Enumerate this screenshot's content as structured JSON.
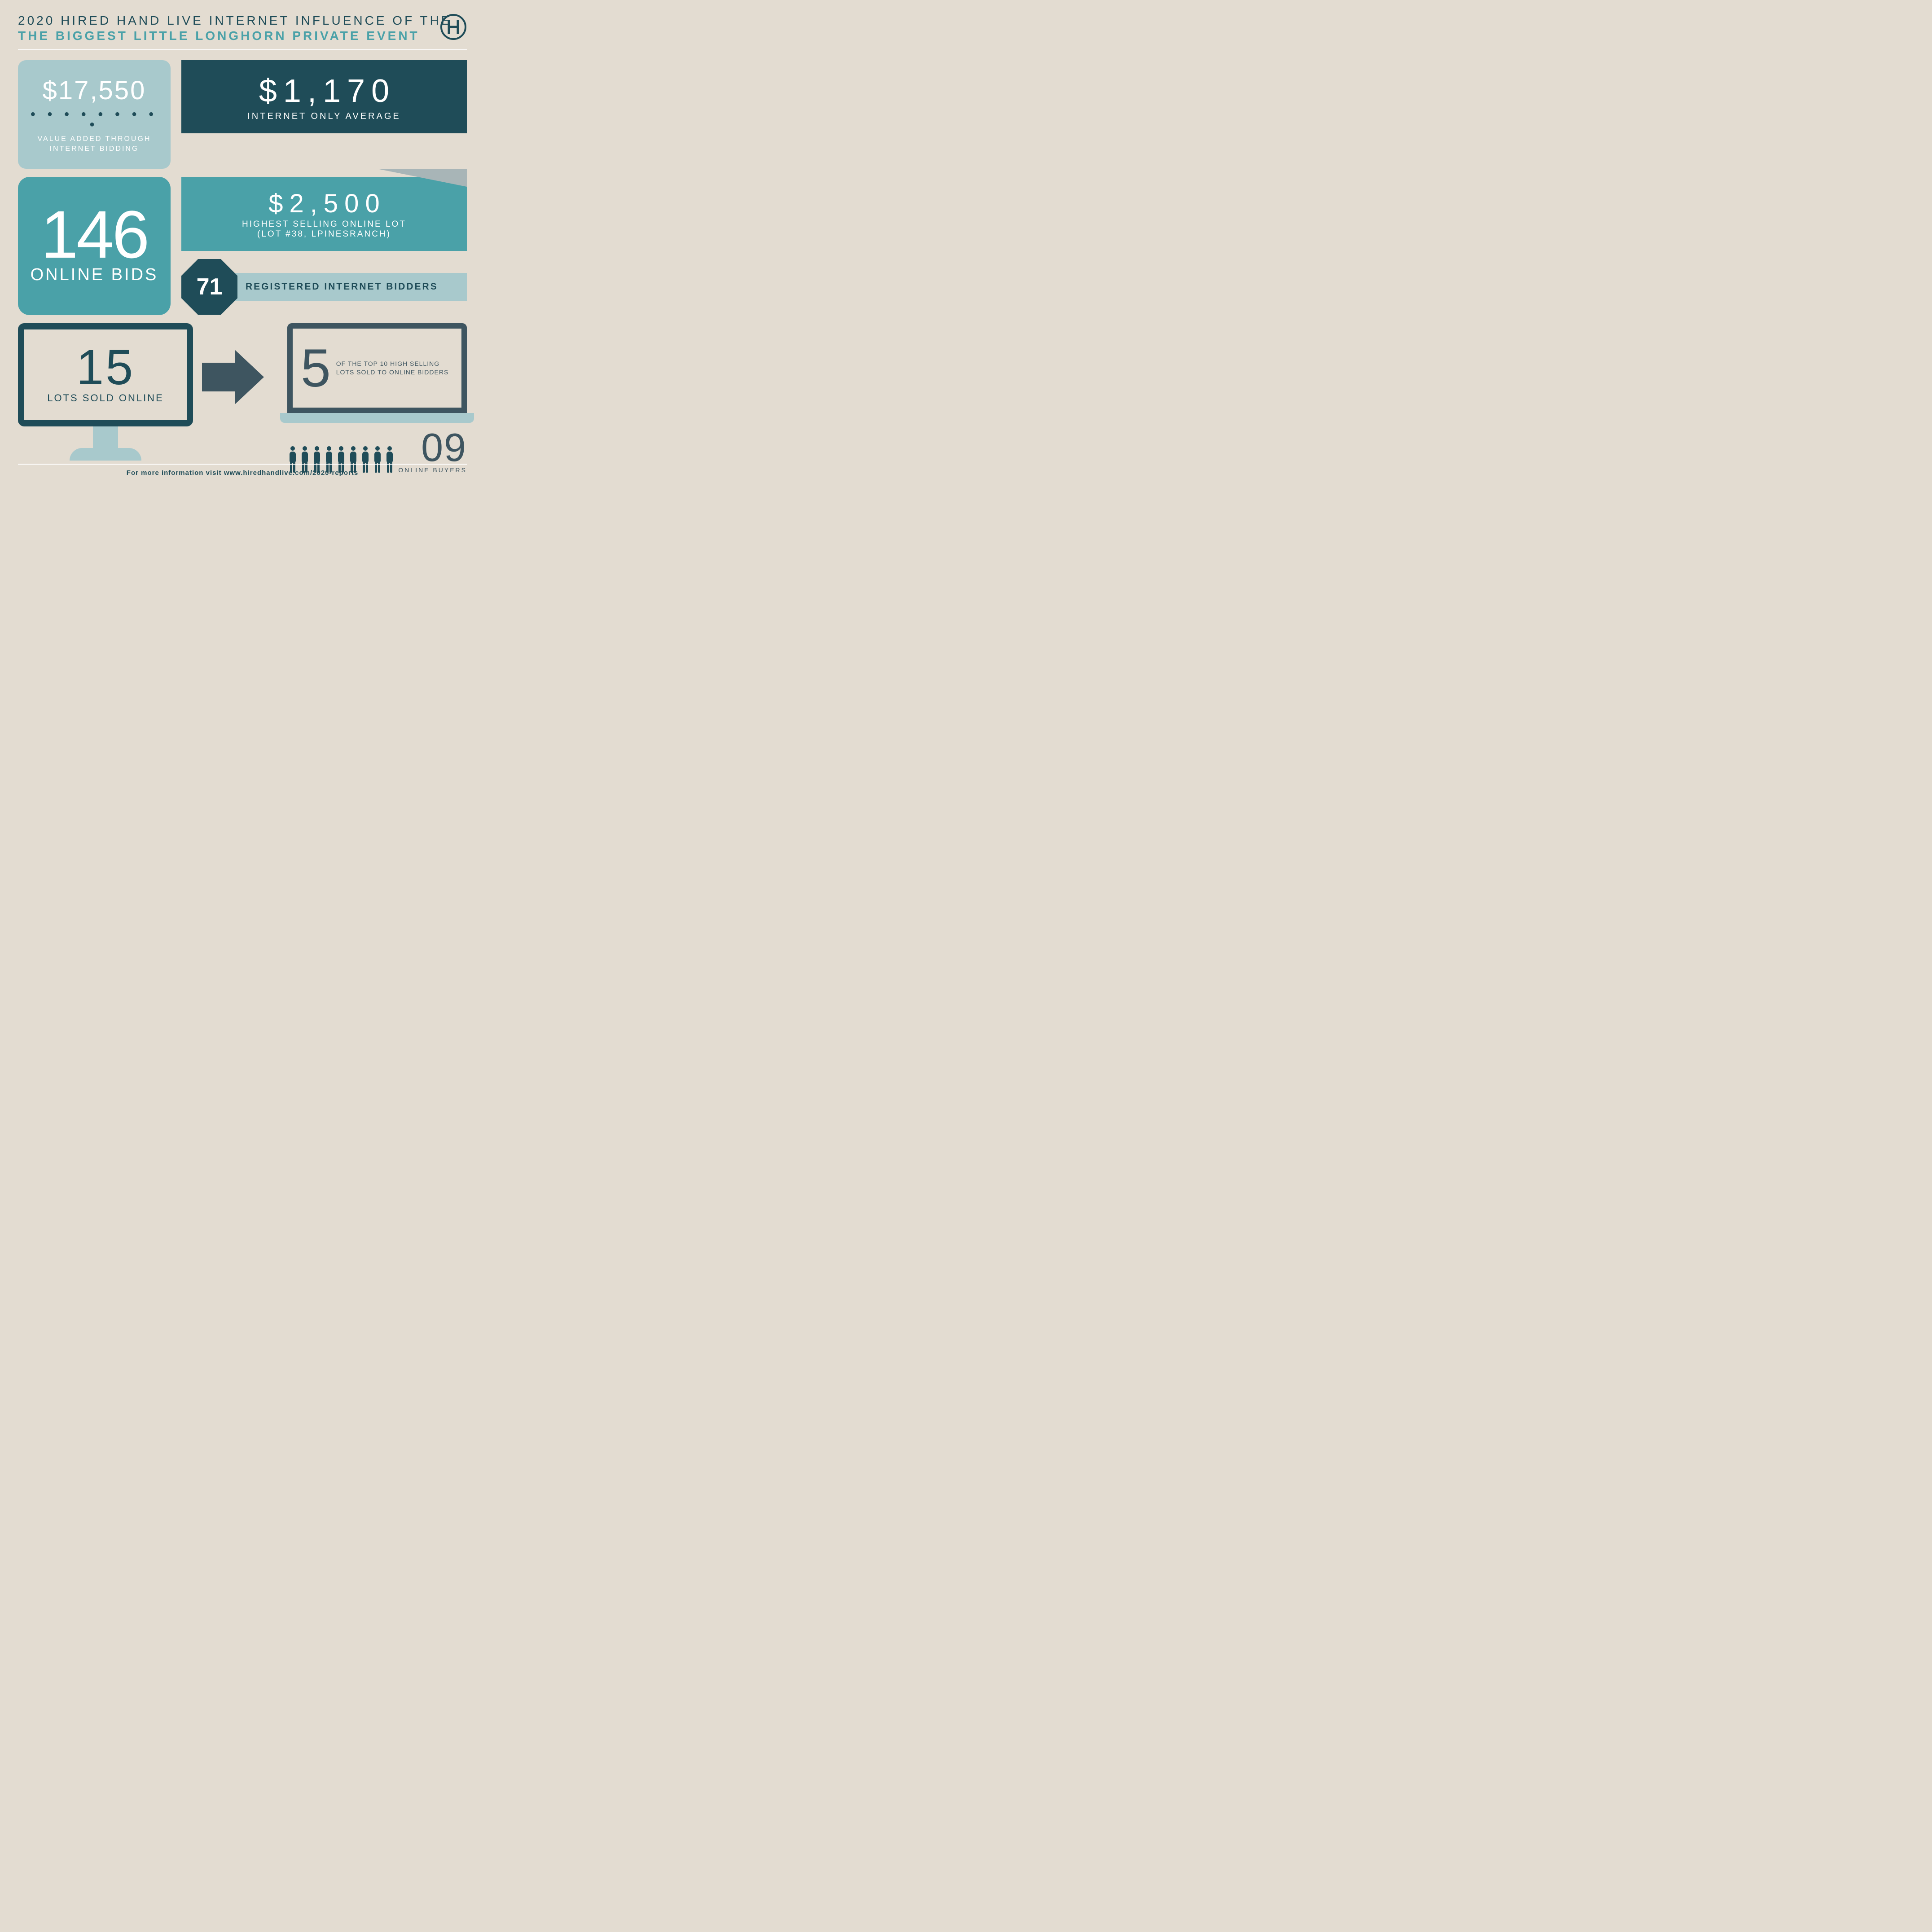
{
  "colors": {
    "background": "#e3dcd1",
    "dark_teal": "#1f4c58",
    "teal": "#4aa1a8",
    "light_teal": "#a8c9cc",
    "slate": "#3e5560",
    "white": "#ffffff"
  },
  "header": {
    "line1": "2020 HIRED HAND LIVE INTERNET INFLUENCE OF THE",
    "line2": "THE BIGGEST LITTLE LONGHORN PRIVATE EVENT",
    "logo_text": "H"
  },
  "value_added": {
    "amount": "$17,550",
    "label": "VALUE ADDED THROUGH INTERNET BIDDING"
  },
  "internet_avg": {
    "amount": "$1,170",
    "label": "INTERNET ONLY AVERAGE"
  },
  "highest_lot": {
    "amount": "$2,500",
    "label1": "HIGHEST SELLING ONLINE LOT",
    "label2": "(LOT #38, LPINESRANCH)"
  },
  "online_bids": {
    "count": "146",
    "label": "ONLINE BIDS"
  },
  "bidders": {
    "count": "71",
    "label": "REGISTERED INTERNET BIDDERS"
  },
  "lots_sold": {
    "count": "15",
    "label": "LOTS SOLD ONLINE"
  },
  "top_lots": {
    "count": "5",
    "label": "OF THE TOP 10 HIGH SELLING LOTS SOLD TO ONLINE BIDDERS"
  },
  "buyers": {
    "count": "09",
    "icon_count": 9,
    "label": "ONLINE BUYERS"
  },
  "footer": {
    "text": "For more information visit www.hiredhandlive.com/2020-reports"
  }
}
